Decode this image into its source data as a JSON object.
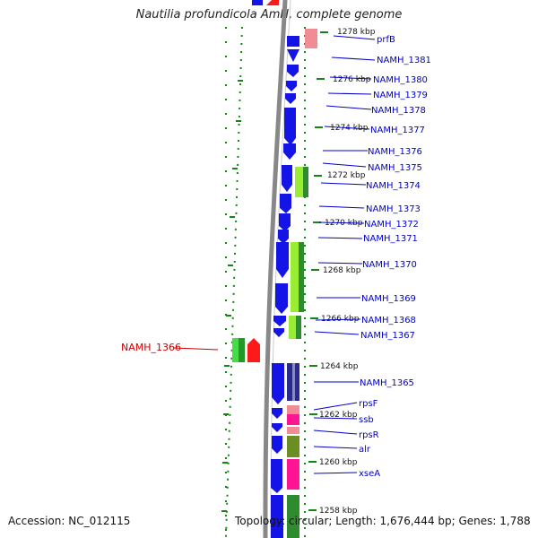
{
  "title": "Nautilia profundicola AmH, complete genome",
  "footer": {
    "accession": "Accession: NC_012115",
    "topology": "Topology: circular; Length: 1,676,444 bp; Genes: 1,788"
  },
  "colors": {
    "blue_cds": "#1414e6",
    "pink": "#f08c94",
    "magenta": "#ff1493",
    "olive": "#6b8e23",
    "lightgreen": "#99ee33",
    "green": "#2e8b2e",
    "navy": "#2a2a8c",
    "red": "#ff1a1a",
    "tick_green": "#118811",
    "label_blue": "#0000cc",
    "label_red": "#cc0000"
  },
  "kbp_ticks": [
    "1278 kbp",
    "1276 kbp",
    "1274 kbp",
    "1272 kbp",
    "1270 kbp",
    "1268 kbp",
    "1266 kbp",
    "1264 kbp",
    "1262 kbp",
    "1260 kbp",
    "1258 kbp"
  ],
  "genes": [
    "prfB",
    "NAMH_1381",
    "NAMH_1380",
    "NAMH_1379",
    "NAMH_1378",
    "NAMH_1377",
    "NAMH_1376",
    "NAMH_1375",
    "NAMH_1374",
    "NAMH_1373",
    "NAMH_1372",
    "NAMH_1371",
    "NAMH_1370",
    "NAMH_1369",
    "NAMH_1368",
    "NAMH_1367",
    "NAMH_1365",
    "rpsF",
    "ssb",
    "rpsR",
    "alr",
    "xseA"
  ],
  "highlight_gene": "NAMH_1366"
}
